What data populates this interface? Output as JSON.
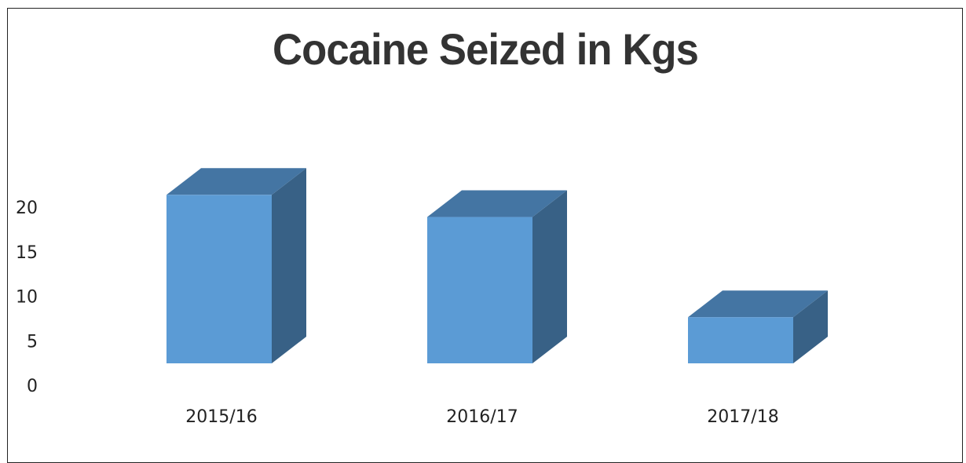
{
  "chart_data": {
    "type": "bar",
    "title": "Cocaine Seized in Kgs",
    "categories": [
      "2015/16",
      "2016/17",
      "2017/18"
    ],
    "values": [
      19,
      16.5,
      5.2
    ],
    "yticks": [
      0,
      5,
      10,
      15,
      20
    ],
    "ylim": [
      0,
      20
    ],
    "xlabel": "",
    "ylabel": "",
    "grid": false,
    "legend": "none",
    "style": "3d-column"
  },
  "colors": {
    "bar_front": "#5b9bd5",
    "bar_top": "#4475a3",
    "bar_side": "#386186",
    "text": "#333333"
  }
}
